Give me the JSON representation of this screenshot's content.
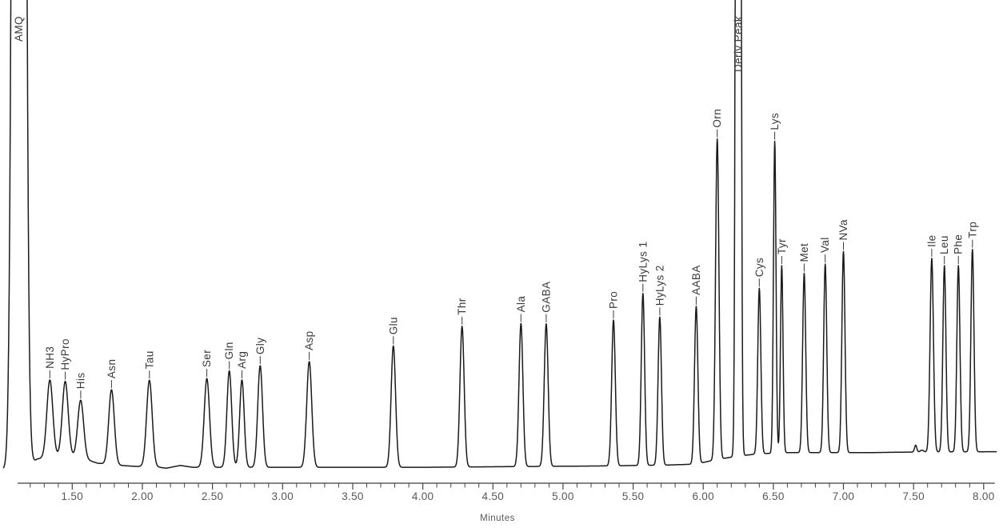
{
  "window": {
    "background_color": "#ffffff"
  },
  "chart_data": {
    "type": "line",
    "subtype": "chromatogram",
    "title": "",
    "xlabel": "Minutes",
    "ylabel": "",
    "grid": false,
    "legend": false,
    "trace_color": "#1a1a1a",
    "axis_color": "#3c3c3c",
    "tick_color": "#444444",
    "tick_label_color": "#585858",
    "peak_label_color": "#3a3a3a",
    "x_axis": {
      "axis_line_min": 1.11,
      "axis_line_max": 8.08,
      "major_ticks": [
        {
          "value": 1.5,
          "label": "1.50"
        },
        {
          "value": 2.0,
          "label": "2.00"
        },
        {
          "value": 2.5,
          "label": "2.50"
        },
        {
          "value": 3.0,
          "label": "3.00"
        },
        {
          "value": 3.5,
          "label": "3.50"
        },
        {
          "value": 4.0,
          "label": "4.00"
        },
        {
          "value": 4.5,
          "label": "4.50"
        },
        {
          "value": 5.0,
          "label": "5.00"
        },
        {
          "value": 5.5,
          "label": "5.50"
        },
        {
          "value": 6.0,
          "label": "6.00"
        },
        {
          "value": 6.5,
          "label": "6.50"
        },
        {
          "value": 7.0,
          "label": "7.00"
        },
        {
          "value": 7.5,
          "label": "7.50"
        },
        {
          "value": 8.0,
          "label": "8.00"
        }
      ],
      "minor_ticks": {
        "start": 1.2,
        "end": 8.0,
        "step": 0.1
      }
    },
    "y_axis": {
      "visible": false,
      "units": "detector response (arbitrary)"
    },
    "domain_min": 1.01,
    "domain_max": 8.09,
    "peaks": [
      {
        "label": "AMQ",
        "rt_min": 1.12,
        "height_pct": 900,
        "sigma_min": 0.028,
        "clipped": true,
        "label_bottom_y": 52
      },
      {
        "label": "NH3",
        "rt_min": 1.34,
        "height_pct": 16.7,
        "sigma_min": 0.021,
        "clipped": false
      },
      {
        "label": "HyPro",
        "rt_min": 1.45,
        "height_pct": 16.2,
        "sigma_min": 0.021,
        "clipped": false
      },
      {
        "label": "His",
        "rt_min": 1.56,
        "height_pct": 12.5,
        "sigma_min": 0.021,
        "clipped": false
      },
      {
        "label": "Asn",
        "rt_min": 1.78,
        "height_pct": 16.3,
        "sigma_min": 0.02,
        "clipped": false
      },
      {
        "label": "Tau",
        "rt_min": 2.05,
        "height_pct": 18.8,
        "sigma_min": 0.02,
        "clipped": false
      },
      {
        "label": "Ser",
        "rt_min": 2.46,
        "height_pct": 19.3,
        "sigma_min": 0.019,
        "clipped": false
      },
      {
        "label": "Gln",
        "rt_min": 2.62,
        "height_pct": 21.0,
        "sigma_min": 0.017,
        "clipped": false
      },
      {
        "label": "Arg",
        "rt_min": 2.71,
        "height_pct": 19.0,
        "sigma_min": 0.016,
        "clipped": false
      },
      {
        "label": "Gly",
        "rt_min": 2.84,
        "height_pct": 22.1,
        "sigma_min": 0.017,
        "clipped": false
      },
      {
        "label": "Asp",
        "rt_min": 3.19,
        "height_pct": 23.0,
        "sigma_min": 0.018,
        "clipped": false
      },
      {
        "label": "Glu",
        "rt_min": 3.79,
        "height_pct": 26.4,
        "sigma_min": 0.016,
        "clipped": false
      },
      {
        "label": "Thr",
        "rt_min": 4.28,
        "height_pct": 30.6,
        "sigma_min": 0.015,
        "clipped": false
      },
      {
        "label": "Ala",
        "rt_min": 4.7,
        "height_pct": 31.1,
        "sigma_min": 0.014,
        "clipped": false
      },
      {
        "label": "GABA",
        "rt_min": 4.88,
        "height_pct": 31.0,
        "sigma_min": 0.014,
        "clipped": false
      },
      {
        "label": "Pro",
        "rt_min": 5.36,
        "height_pct": 31.7,
        "sigma_min": 0.013,
        "clipped": false
      },
      {
        "label": "HyLys 1",
        "rt_min": 5.57,
        "height_pct": 37.4,
        "sigma_min": 0.012,
        "clipped": false
      },
      {
        "label": "HyLys 2",
        "rt_min": 5.69,
        "height_pct": 32.2,
        "sigma_min": 0.012,
        "clipped": false
      },
      {
        "label": "AABA",
        "rt_min": 5.95,
        "height_pct": 34.3,
        "sigma_min": 0.012,
        "clipped": false
      },
      {
        "label": "Orn",
        "rt_min": 6.1,
        "height_pct": 69.7,
        "sigma_min": 0.012,
        "clipped": false
      },
      {
        "label": "Deriv Peak",
        "rt_min": 6.25,
        "height_pct": 900,
        "sigma_min": 0.011,
        "clipped": true,
        "label_bottom_y": 90
      },
      {
        "label": "Cys",
        "rt_min": 6.4,
        "height_pct": 36.0,
        "sigma_min": 0.011,
        "clipped": false
      },
      {
        "label": "Lys",
        "rt_min": 6.51,
        "height_pct": 67.8,
        "sigma_min": 0.009,
        "clipped": false
      },
      {
        "label": "Tyr",
        "rt_min": 6.56,
        "height_pct": 40.7,
        "sigma_min": 0.009,
        "clipped": false
      },
      {
        "label": "Met",
        "rt_min": 6.72,
        "height_pct": 39.0,
        "sigma_min": 0.011,
        "clipped": false
      },
      {
        "label": "Val",
        "rt_min": 6.87,
        "height_pct": 41.0,
        "sigma_min": 0.011,
        "clipped": false
      },
      {
        "label": "NVa",
        "rt_min": 7.0,
        "height_pct": 43.7,
        "sigma_min": 0.011,
        "clipped": false
      },
      {
        "label": "Ile",
        "rt_min": 7.63,
        "height_pct": 42.1,
        "sigma_min": 0.012,
        "clipped": false
      },
      {
        "label": "Leu",
        "rt_min": 7.72,
        "height_pct": 40.5,
        "sigma_min": 0.011,
        "clipped": false
      },
      {
        "label": "Phe",
        "rt_min": 7.82,
        "height_pct": 40.5,
        "sigma_min": 0.011,
        "clipped": false
      },
      {
        "label": "Trp",
        "rt_min": 7.92,
        "height_pct": 44.0,
        "sigma_min": 0.011,
        "clipped": false
      }
    ],
    "unlabeled_features": [
      {
        "rt_min": 7.515,
        "height_pct": 1.5,
        "sigma_min": 0.008
      },
      {
        "rt_min": 7.56,
        "height_pct": 0.4,
        "sigma_min": 0.012
      }
    ],
    "baseline_drift_pct": [
      [
        1.01,
        0.0
      ],
      [
        1.17,
        0.2
      ],
      [
        1.25,
        2.3
      ],
      [
        1.34,
        2.8
      ],
      [
        1.45,
        3.0
      ],
      [
        1.56,
        2.6
      ],
      [
        1.68,
        1.4
      ],
      [
        1.8,
        1.0
      ],
      [
        1.95,
        0.7
      ],
      [
        2.1,
        0.6
      ],
      [
        2.17,
        0.3
      ],
      [
        2.27,
        0.9
      ],
      [
        2.36,
        0.5
      ],
      [
        3.0,
        0.5
      ],
      [
        4.0,
        0.5
      ],
      [
        5.3,
        0.8
      ],
      [
        5.75,
        1.0
      ],
      [
        5.95,
        1.2
      ],
      [
        6.08,
        2.1
      ],
      [
        6.22,
        2.8
      ],
      [
        6.38,
        3.4
      ],
      [
        6.6,
        3.7
      ],
      [
        7.2,
        3.7
      ],
      [
        7.45,
        3.8
      ],
      [
        8.09,
        3.9
      ]
    ]
  }
}
